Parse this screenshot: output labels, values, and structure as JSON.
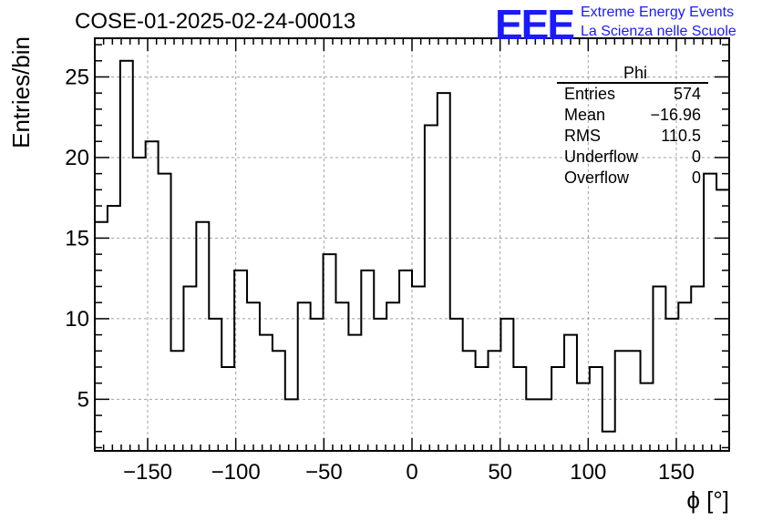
{
  "header": {
    "title": "COSE-01-2025-02-24-00013"
  },
  "logo": {
    "mark": "EEE",
    "line1": "Extreme Energy Events",
    "line2": "La Scienza nelle Scuole"
  },
  "stats": {
    "name": "Phi",
    "rows": [
      {
        "label": "Entries",
        "value": "574"
      },
      {
        "label": "Mean",
        "value": "−16.96"
      },
      {
        "label": "RMS",
        "value": "110.5"
      },
      {
        "label": "Underflow",
        "value": "0"
      },
      {
        "label": "Overflow",
        "value": "0"
      }
    ]
  },
  "chart_data": {
    "type": "histogram",
    "title": "COSE-01-2025-02-24-00013",
    "xlabel": "ϕ [°]",
    "ylabel": "Entries/bin",
    "xlim": [
      -180,
      180
    ],
    "ylim": [
      1.8,
      27.4
    ],
    "grid": true,
    "bin_width": 7.2,
    "bin_edges_start": -180,
    "values": [
      16,
      17,
      26,
      20,
      21,
      19,
      8,
      12,
      16,
      10,
      7,
      13,
      11,
      9,
      8,
      5,
      11,
      10,
      14,
      11,
      9,
      13,
      10,
      11,
      13,
      12,
      22,
      24,
      10,
      8,
      7,
      8,
      10,
      7,
      5,
      5,
      7,
      9,
      6,
      7,
      3,
      8,
      8,
      6,
      12,
      10,
      11,
      12,
      19,
      18
    ],
    "x_ticks": [
      -150,
      -100,
      -50,
      0,
      50,
      100,
      150
    ],
    "x_tick_labels": [
      "−150",
      "−100",
      "−50",
      "0",
      "50",
      "100",
      "150"
    ],
    "y_ticks": [
      5,
      10,
      15,
      20,
      25
    ],
    "y_tick_labels": [
      "5",
      "10",
      "15",
      "20",
      "25"
    ],
    "color": "#000000",
    "grid_color": "#a0a0a0"
  }
}
